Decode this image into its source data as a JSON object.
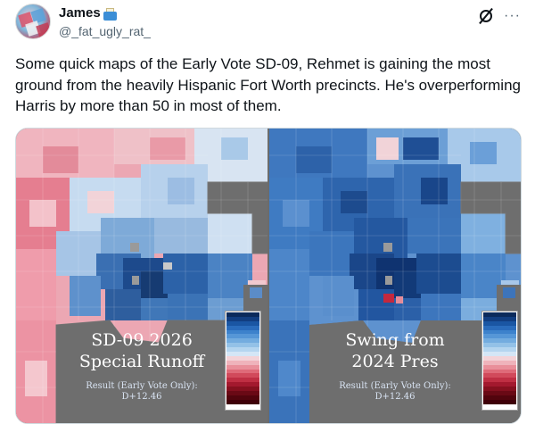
{
  "post": {
    "author": {
      "display_name": "James",
      "handle": "@_fat_ugly_rat_",
      "avatar_icon": "avatar-image",
      "name_emoji_icon": "inbox-tray-icon"
    },
    "icons": [
      "grok-icon",
      "more-options-icon"
    ],
    "text": "Some quick maps of the Early Vote SD-09, Rehmet is gaining the most ground from the heavily Hispanic Fort Worth precincts. He's overperforming Harris by more than 50 in most of them."
  },
  "media": {
    "maps": [
      {
        "title_line1": "SD-09 2026",
        "title_line2": "Special Runoff",
        "sub_line1": "Result (Early Vote Only):",
        "sub_line2": "D+12.46"
      },
      {
        "title_line1": "Swing from",
        "title_line2": "2024 Pres",
        "sub_line1": "Result (Early Vote Only):",
        "sub_line2": "D+12.46"
      }
    ],
    "legend_colors": [
      "#0b2a5b",
      "#123e80",
      "#1a56a3",
      "#2a6cbc",
      "#3d82cc",
      "#5697d7",
      "#73acdf",
      "#93c1e7",
      "#b4d5ef",
      "#d4e6f6",
      "#f3d3d8",
      "#efb3bb",
      "#e98f9a",
      "#df6b79",
      "#d14a5b",
      "#bf2f43",
      "#a3192e",
      "#85101f",
      "#6a0915",
      "#52040d",
      "#3f0008"
    ],
    "colors": {
      "map_bg": "#6e6e6e",
      "text_primary": "#0f1419",
      "text_secondary": "#536471"
    }
  }
}
